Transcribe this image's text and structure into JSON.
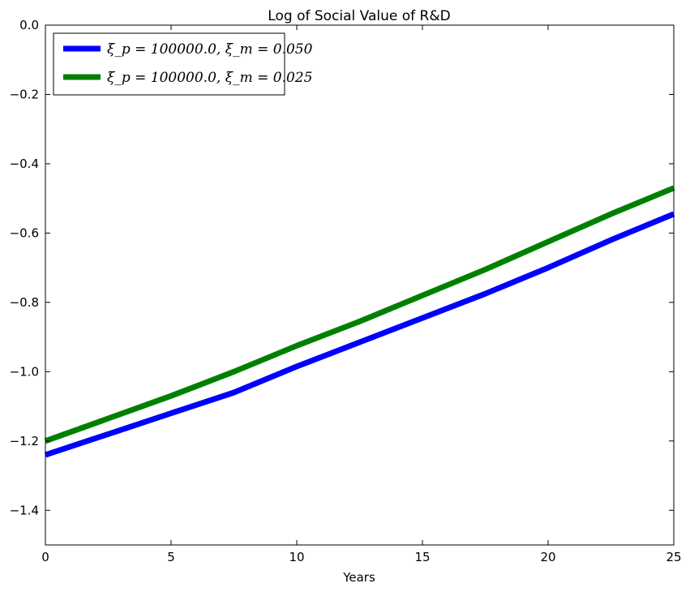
{
  "chart_data": {
    "type": "line",
    "title": "Log of Social Value of R&D",
    "xlabel": "Years",
    "ylabel": "",
    "xlim": [
      0,
      25
    ],
    "ylim": [
      -1.5,
      0.0
    ],
    "xticks": [
      0,
      5,
      10,
      15,
      20,
      25
    ],
    "xtick_labels": [
      "0",
      "5",
      "10",
      "15",
      "20",
      "25"
    ],
    "yticks": [
      0.0,
      -0.2,
      -0.4,
      -0.6,
      -0.8,
      -1.0,
      -1.2,
      -1.4
    ],
    "ytick_labels": [
      "0.0",
      "−0.2",
      "−0.4",
      "−0.6",
      "−0.8",
      "−1.0",
      "−1.2",
      "−1.4"
    ],
    "grid": false,
    "legend_position": "top-left",
    "series": [
      {
        "name": "ξ_p = 100000.0, ξ_m = 0.050",
        "color": "#0000ff",
        "x": [
          0,
          2.5,
          5,
          7.5,
          10,
          12.5,
          15,
          17.5,
          20,
          22.5,
          25
        ],
        "y": [
          -1.24,
          -1.18,
          -1.12,
          -1.06,
          -0.985,
          -0.915,
          -0.845,
          -0.775,
          -0.7,
          -0.62,
          -0.545
        ]
      },
      {
        "name": "ξ_p = 100000.0, ξ_m = 0.025",
        "color": "#008000",
        "x": [
          0,
          2.5,
          5,
          7.5,
          10,
          12.5,
          15,
          17.5,
          20,
          22.5,
          25
        ],
        "y": [
          -1.2,
          -1.135,
          -1.07,
          -1.0,
          -0.925,
          -0.855,
          -0.78,
          -0.705,
          -0.625,
          -0.545,
          -0.47
        ]
      }
    ]
  }
}
